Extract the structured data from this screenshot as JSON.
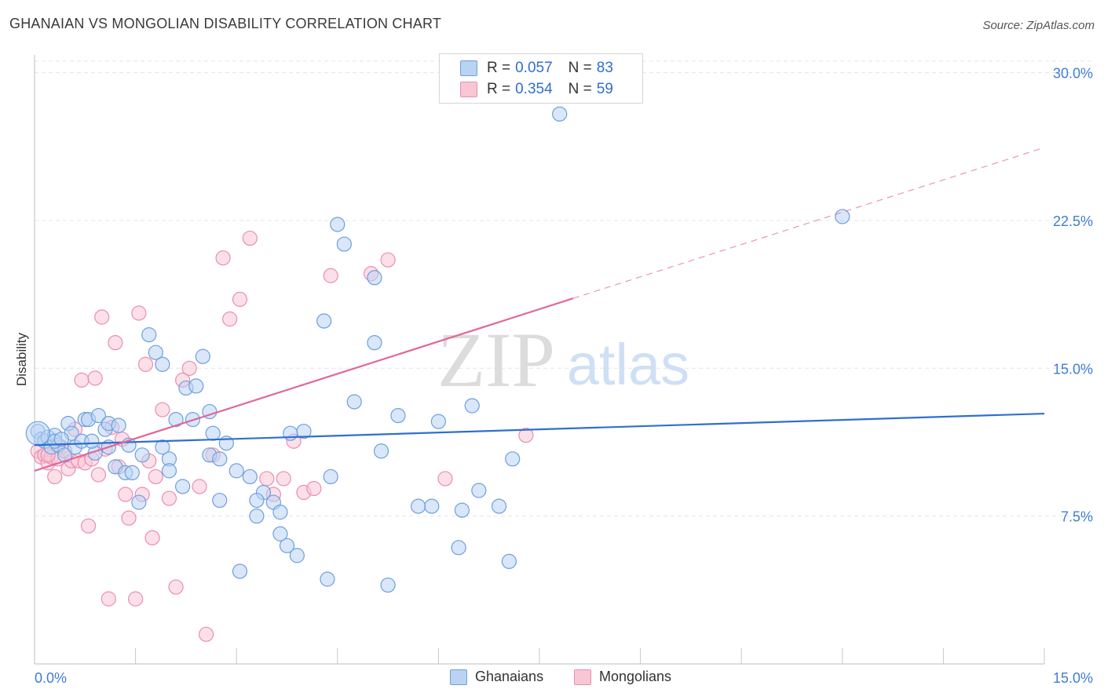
{
  "title": "GHANAIAN VS MONGOLIAN DISABILITY CORRELATION CHART",
  "source": "Source: ZipAtlas.com",
  "watermark": {
    "zip": "ZIP",
    "atlas": "atlas"
  },
  "legend": {
    "rows": [
      {
        "r_label": "R =",
        "r_value": "0.057",
        "n_label": "N =",
        "n_value": "83"
      },
      {
        "r_label": "R =",
        "r_value": "0.354",
        "n_label": "N =",
        "n_value": "59"
      }
    ]
  },
  "bottom_legend": [
    "Ghanaians",
    "Mongolians"
  ],
  "colors": {
    "blue_fill": "#b9d3f3",
    "blue_stroke": "#6d9fe0",
    "blue_line": "#2f6fd0",
    "pink_fill": "#f9c6d6",
    "pink_stroke": "#eb8db0",
    "pink_line": "#e0689a",
    "axis_text": "#3f7dd6",
    "grid": "#e4e4e4"
  },
  "chart_data": {
    "type": "scatter",
    "title": "GHANAIAN VS MONGOLIAN DISABILITY CORRELATION CHART",
    "xlabel": "",
    "ylabel": "Disability",
    "xlim": [
      0,
      15
    ],
    "ylim": [
      0,
      30.9
    ],
    "x_tick_labels": [
      "0.0%",
      "15.0%"
    ],
    "y_ticks": [
      7.5,
      15.0,
      22.5,
      30.0
    ],
    "y_tick_labels": [
      "7.5%",
      "15.0%",
      "22.5%",
      "30.0%"
    ],
    "grid": true,
    "legend_position": "top-center",
    "series": [
      {
        "name": "Ghanaians",
        "color": "#6d9fe0",
        "x": [
          0.05,
          0.1,
          0.15,
          0.2,
          0.25,
          0.3,
          0.35,
          0.45,
          0.5,
          0.55,
          0.6,
          0.7,
          0.75,
          0.8,
          0.9,
          0.95,
          1.05,
          1.1,
          1.2,
          1.35,
          1.4,
          1.45,
          1.55,
          1.6,
          1.7,
          1.8,
          1.9,
          2.0,
          2.1,
          2.2,
          2.25,
          2.35,
          2.4,
          2.5,
          2.6,
          2.65,
          2.75,
          2.85,
          3.0,
          3.05,
          3.2,
          3.3,
          3.4,
          3.55,
          3.65,
          3.75,
          3.9,
          4.0,
          4.3,
          4.35,
          4.4,
          4.5,
          4.6,
          4.75,
          5.05,
          5.05,
          5.15,
          5.25,
          5.4,
          5.7,
          5.9,
          6.0,
          6.3,
          6.35,
          6.5,
          6.6,
          6.9,
          7.05,
          7.1,
          7.8,
          12.0,
          0.3,
          0.85,
          1.25,
          2.0,
          2.6,
          2.75,
          3.3,
          3.8,
          1.1,
          1.9,
          0.4,
          3.65
        ],
        "y": [
          11.8,
          11.4,
          11.3,
          11.5,
          11.0,
          11.6,
          11.1,
          10.6,
          12.2,
          11.7,
          11.0,
          11.3,
          12.4,
          12.4,
          10.7,
          12.6,
          11.9,
          12.2,
          10.0,
          9.7,
          11.1,
          9.7,
          8.2,
          10.6,
          16.7,
          15.8,
          15.2,
          10.4,
          12.4,
          9.0,
          14.0,
          12.4,
          14.1,
          15.6,
          12.8,
          11.7,
          8.3,
          11.2,
          9.8,
          4.7,
          9.5,
          7.5,
          8.7,
          8.2,
          7.7,
          6.0,
          5.5,
          11.8,
          17.4,
          4.3,
          9.5,
          22.3,
          21.3,
          13.3,
          19.6,
          16.3,
          10.8,
          4.0,
          12.6,
          8.0,
          8.0,
          12.3,
          5.9,
          7.8,
          13.1,
          8.8,
          8.0,
          5.2,
          10.4,
          27.9,
          22.7,
          11.3,
          11.3,
          12.1,
          9.8,
          10.6,
          10.4,
          8.3,
          11.7,
          11.0,
          11.0,
          11.4,
          6.6
        ]
      },
      {
        "name": "Mongolians",
        "color": "#eb8db0",
        "x": [
          0.05,
          0.1,
          0.15,
          0.2,
          0.25,
          0.3,
          0.35,
          0.4,
          0.45,
          0.5,
          0.55,
          0.6,
          0.65,
          0.7,
          0.75,
          0.8,
          0.85,
          0.9,
          0.95,
          1.0,
          1.05,
          1.1,
          1.15,
          1.2,
          1.25,
          1.3,
          1.35,
          1.4,
          1.5,
          1.55,
          1.6,
          1.65,
          1.7,
          1.75,
          1.8,
          1.9,
          2.0,
          2.1,
          2.2,
          2.3,
          2.45,
          2.55,
          2.65,
          2.8,
          2.9,
          3.05,
          3.2,
          3.45,
          3.55,
          3.7,
          3.85,
          4.0,
          4.15,
          4.4,
          5.0,
          5.25,
          6.1,
          7.3,
          0.2
        ],
        "y": [
          10.8,
          10.5,
          10.6,
          10.2,
          10.5,
          9.5,
          10.4,
          11.0,
          10.8,
          9.9,
          10.3,
          11.9,
          10.3,
          14.4,
          10.2,
          7.0,
          10.4,
          14.5,
          9.6,
          17.6,
          10.9,
          3.3,
          12.0,
          16.3,
          10.0,
          11.4,
          8.6,
          7.4,
          3.3,
          17.8,
          8.6,
          15.2,
          10.3,
          6.4,
          9.5,
          12.9,
          8.4,
          3.9,
          14.4,
          15.0,
          9.0,
          1.5,
          10.6,
          20.6,
          17.5,
          18.5,
          21.6,
          9.4,
          8.6,
          9.4,
          11.3,
          8.7,
          8.9,
          19.7,
          19.8,
          20.5,
          9.4,
          11.6,
          10.6
        ]
      }
    ],
    "trendlines": [
      {
        "series": "Ghanaians",
        "x": [
          0,
          15
        ],
        "y": [
          11.1,
          12.7
        ],
        "solid_to_x": 15
      },
      {
        "series": "Mongolians",
        "x": [
          0,
          15
        ],
        "y": [
          9.8,
          26.2
        ],
        "solid_to_x": 8.0
      }
    ]
  }
}
